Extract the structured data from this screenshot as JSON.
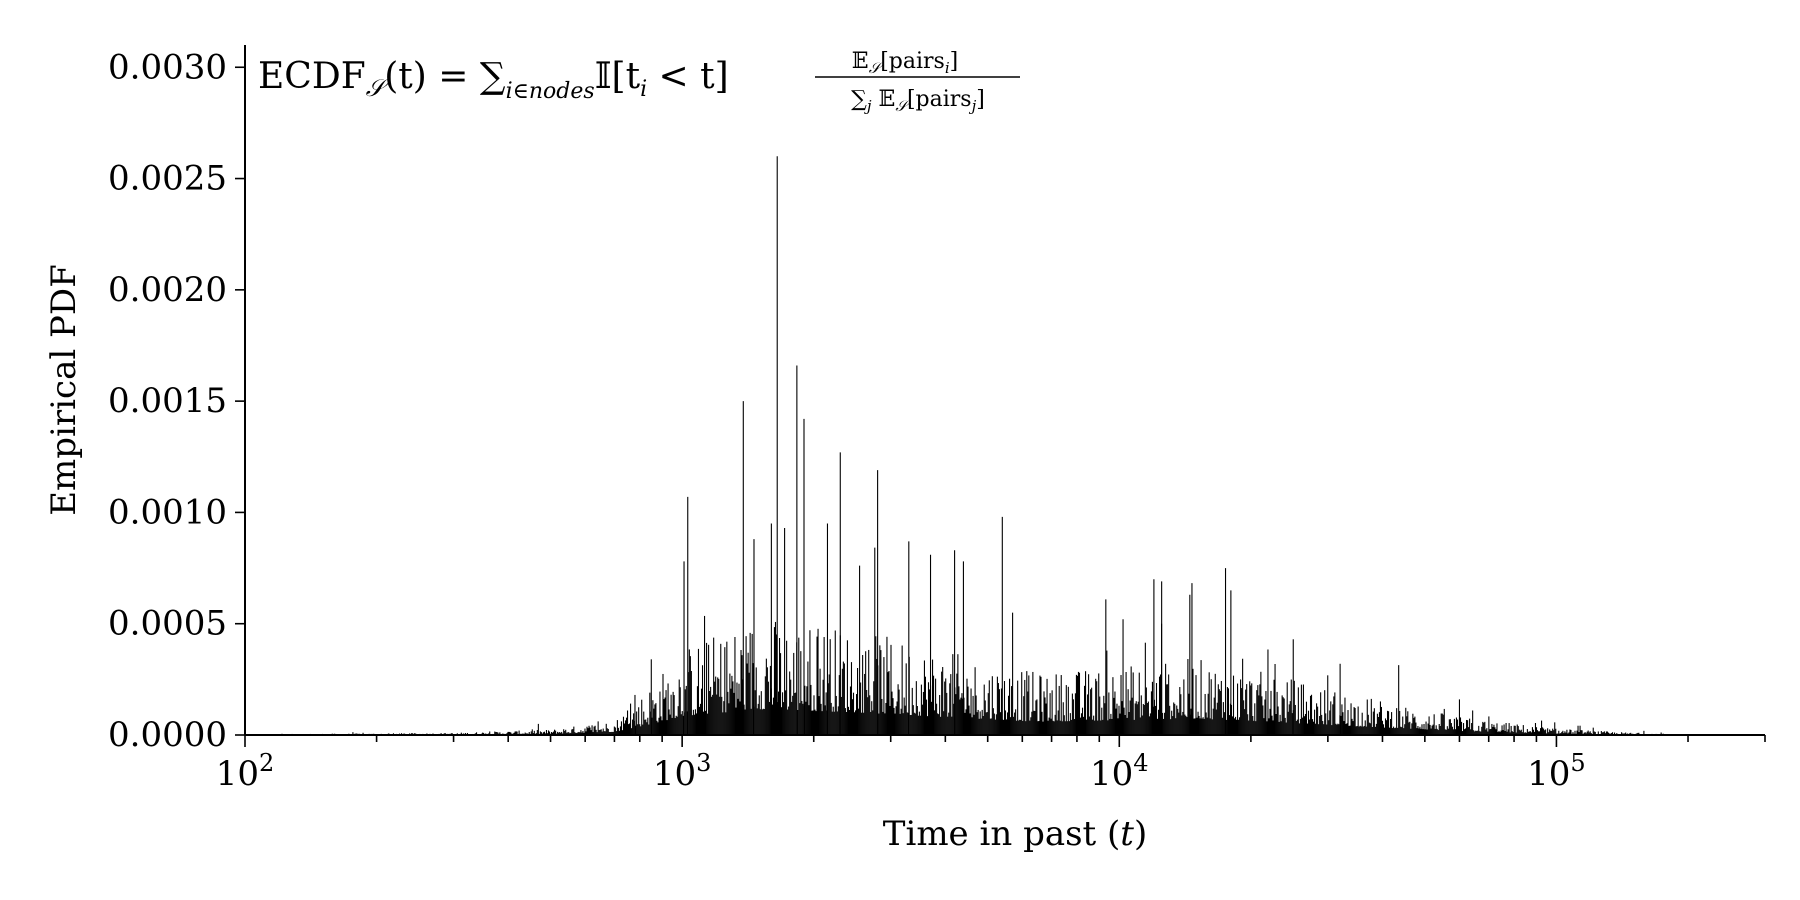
{
  "chart_data": {
    "type": "bar",
    "title": "",
    "annotation": {
      "lhs": "ECDF",
      "lhs_sub": "𝒮",
      "lhs_arg": "(t) = ∑",
      "sum_sub": "i∈nodes",
      "indicator": "𝕀[t",
      "indicator_sub": "i",
      "indicator_tail": " < t]",
      "num": "𝔼",
      "num_sub": "𝒮",
      "num_body": "[pairs",
      "num_body_sub": "i",
      "num_close": "]",
      "den": "∑",
      "den_sub": "j",
      "den_E": " 𝔼",
      "den_E_sub": "𝒮",
      "den_body": "[pairs",
      "den_body_sub": "j",
      "den_close": "]"
    },
    "xlabel": "Time in past (t)",
    "ylabel": "Empirical PDF",
    "xscale": "log",
    "xlim": [
      100,
      300000
    ],
    "ylim": [
      0,
      0.0031
    ],
    "yticks": [
      "0.0000",
      "0.0005",
      "0.0010",
      "0.0015",
      "0.0020",
      "0.0025",
      "0.0030"
    ],
    "xticks": [
      {
        "base": "10",
        "exp": "2"
      },
      {
        "base": "10",
        "exp": "3"
      },
      {
        "base": "10",
        "exp": "4"
      },
      {
        "base": "10",
        "exp": "5"
      }
    ],
    "grid": false,
    "legend": "none",
    "bar_color": "#000000",
    "peaks": [
      {
        "x": 1030,
        "y": 0.00107
      },
      {
        "x": 1010,
        "y": 0.00078
      },
      {
        "x": 1380,
        "y": 0.0015
      },
      {
        "x": 1650,
        "y": 0.0026
      },
      {
        "x": 1830,
        "y": 0.00166
      },
      {
        "x": 1900,
        "y": 0.00142
      },
      {
        "x": 1600,
        "y": 0.00095
      },
      {
        "x": 1460,
        "y": 0.00088
      },
      {
        "x": 2300,
        "y": 0.00127
      },
      {
        "x": 2150,
        "y": 0.00095
      },
      {
        "x": 2800,
        "y": 0.00119
      },
      {
        "x": 3300,
        "y": 0.00087
      },
      {
        "x": 4200,
        "y": 0.00083
      },
      {
        "x": 4400,
        "y": 0.00078
      },
      {
        "x": 5400,
        "y": 0.00098
      },
      {
        "x": 3700,
        "y": 0.00081
      },
      {
        "x": 12000,
        "y": 0.0007
      },
      {
        "x": 12500,
        "y": 0.00069
      },
      {
        "x": 14500,
        "y": 0.00063
      },
      {
        "x": 17500,
        "y": 0.00075
      },
      {
        "x": 18000,
        "y": 0.00065
      },
      {
        "x": 10200,
        "y": 0.00052
      },
      {
        "x": 25000,
        "y": 0.00043
      },
      {
        "x": 32000,
        "y": 0.00032
      },
      {
        "x": 60000,
        "y": 0.00016
      },
      {
        "x": 780,
        "y": 0.00018
      },
      {
        "x": 850,
        "y": 0.00034
      }
    ],
    "envelope": [
      {
        "x": 100,
        "y": 2e-06
      },
      {
        "x": 300,
        "y": 6e-06
      },
      {
        "x": 500,
        "y": 1.5e-05
      },
      {
        "x": 700,
        "y": 4e-05
      },
      {
        "x": 850,
        "y": 0.00014
      },
      {
        "x": 1000,
        "y": 0.00024
      },
      {
        "x": 1500,
        "y": 0.00033
      },
      {
        "x": 2500,
        "y": 0.00029
      },
      {
        "x": 4000,
        "y": 0.00023
      },
      {
        "x": 6500,
        "y": 0.00017
      },
      {
        "x": 10000,
        "y": 0.00019
      },
      {
        "x": 15000,
        "y": 0.00021
      },
      {
        "x": 22000,
        "y": 0.00017
      },
      {
        "x": 35000,
        "y": 0.00011
      },
      {
        "x": 60000,
        "y": 5e-05
      },
      {
        "x": 100000,
        "y": 1.8e-05
      },
      {
        "x": 140000,
        "y": 8e-06
      },
      {
        "x": 200000,
        "y": 1.5e-06
      },
      {
        "x": 300000,
        "y": 5e-07
      }
    ]
  }
}
